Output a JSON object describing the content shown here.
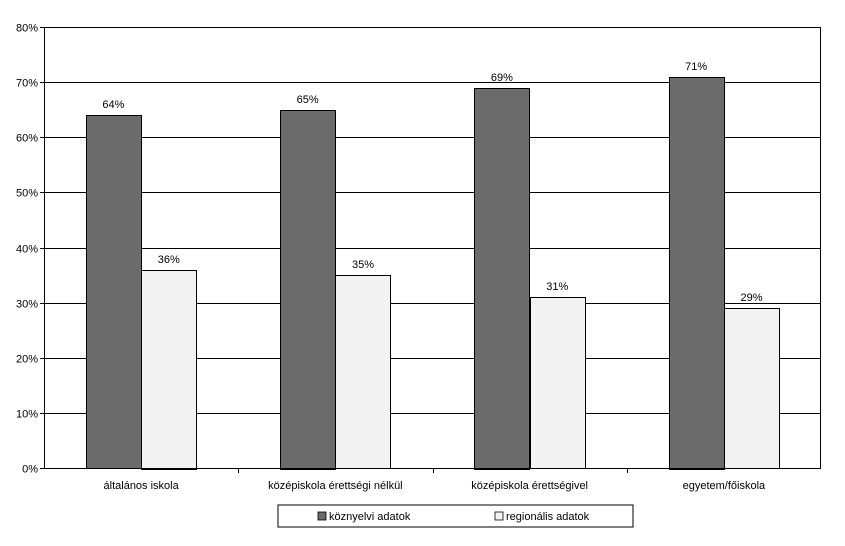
{
  "chart_data": {
    "type": "bar",
    "categories": [
      "általános iskola",
      "középiskola érettségi nélkül",
      "középiskola érettségivel",
      "egyetem/főiskola"
    ],
    "series": [
      {
        "name": "köznyelvi adatok",
        "values": [
          64,
          65,
          69,
          71
        ],
        "labels": [
          "64%",
          "65%",
          "69%",
          "71%"
        ],
        "color": "#6b6b6b"
      },
      {
        "name": "regionális adatok",
        "values": [
          36,
          35,
          31,
          29
        ],
        "labels": [
          "36%",
          "35%",
          "31%",
          "29%"
        ],
        "color": "#f2f2f2"
      }
    ],
    "yticks": [
      0,
      10,
      20,
      30,
      40,
      50,
      60,
      70,
      80
    ],
    "ytick_labels": [
      "0%",
      "10%",
      "20%",
      "30%",
      "40%",
      "50%",
      "60%",
      "70%",
      "80%"
    ],
    "ylim": [
      0,
      80
    ],
    "grid": true,
    "legend_position": "bottom-center",
    "title": "",
    "xlabel": "",
    "ylabel": ""
  }
}
